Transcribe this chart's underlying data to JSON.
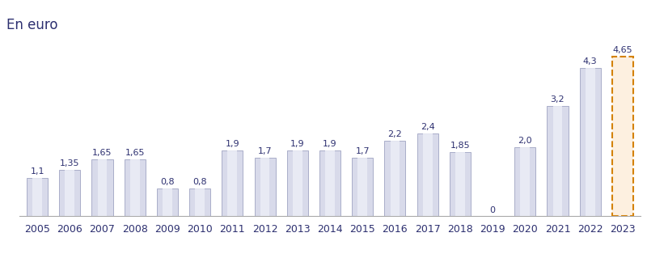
{
  "years": [
    "2005",
    "2006",
    "2007",
    "2008",
    "2009",
    "2010",
    "2011",
    "2012",
    "2013",
    "2014",
    "2015",
    "2016",
    "2017",
    "2018",
    "2019",
    "2020",
    "2021",
    "2022",
    "2023"
  ],
  "values": [
    1.1,
    1.35,
    1.65,
    1.65,
    0.8,
    0.8,
    1.9,
    1.7,
    1.9,
    1.9,
    1.7,
    2.2,
    2.4,
    1.85,
    0.0,
    2.0,
    3.2,
    4.3,
    4.65
  ],
  "labels": [
    "1,1",
    "1,35",
    "1,65",
    "1,65",
    "0,8",
    "0,8",
    "1,9",
    "1,7",
    "1,9",
    "1,9",
    "1,7",
    "2,2",
    "2,4",
    "1,85",
    "0",
    "2,0",
    "3,2",
    "4,3",
    "4,65"
  ],
  "bar_color_left": "#c0c4dc",
  "bar_color_mid": "#e8eaf4",
  "bar_color_right": "#b8bcd8",
  "bar_edge_color": "#9095b8",
  "bar_color_last_fill": "#fdf0e0",
  "bar_edge_color_last": "#d4820a",
  "title_label": "En euro",
  "title_fontsize": 12,
  "label_fontsize": 8,
  "label_color": "#2d3070",
  "tick_fontsize": 9,
  "tick_color": "#2d3070",
  "background_color": "#ffffff",
  "ylim": [
    0,
    5.4
  ],
  "bar_width": 0.65,
  "figsize": [
    8.0,
    3.14
  ],
  "dpi": 100
}
